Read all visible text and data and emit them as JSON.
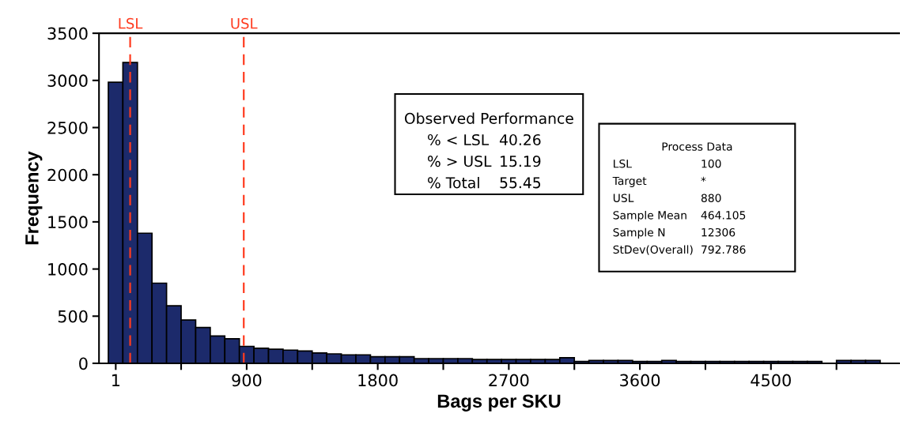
{
  "chart_data": {
    "type": "histogram",
    "xlabel": "Bags per SKU",
    "ylabel": "Frequency",
    "bins": [
      -50,
      50,
      150,
      250,
      350,
      450,
      550,
      650,
      750,
      850,
      950,
      1050,
      1150,
      1250,
      1350,
      1450,
      1550,
      1650,
      1750,
      1850,
      1950,
      2050,
      2150,
      2250,
      2350,
      2450,
      2550,
      2650,
      2750,
      2850,
      2950,
      3050,
      3150,
      3250,
      3350,
      3450,
      3550,
      3650,
      3750,
      3850,
      3950,
      4050,
      4150,
      4250,
      4350,
      4450,
      4550,
      4650,
      4750,
      4850,
      4950,
      5050,
      5150,
      5250
    ],
    "values": [
      2980,
      3190,
      1380,
      850,
      610,
      460,
      380,
      290,
      260,
      180,
      160,
      150,
      140,
      130,
      110,
      100,
      90,
      90,
      70,
      70,
      70,
      50,
      50,
      50,
      50,
      40,
      40,
      40,
      40,
      40,
      40,
      60,
      20,
      30,
      30,
      30,
      20,
      20,
      30,
      20,
      20,
      20,
      20,
      20,
      20,
      20,
      20,
      20,
      20,
      null,
      30,
      30,
      30
    ],
    "color": "#1c2a6b",
    "xlim": [
      -114,
      5380
    ],
    "ylim": [
      0,
      3500
    ],
    "xticks": [
      1,
      {
        "value": 450,
        "label": null
      },
      900,
      {
        "value": 1350,
        "label": null
      },
      1800,
      {
        "value": 2250,
        "label": null
      },
      2700,
      {
        "value": 3150,
        "label": null
      },
      3600,
      {
        "value": 4050,
        "label": null
      },
      4500,
      {
        "value": 4950,
        "label": null
      }
    ],
    "yticks": [
      0,
      500,
      1000,
      1500,
      2000,
      2500,
      3000,
      3500
    ],
    "grid": false,
    "ref_lines": [
      {
        "axis": "x",
        "value": 100,
        "label": "LSL",
        "color": "#ff3b1f",
        "line_style": "dashed"
      },
      {
        "axis": "x",
        "value": 880,
        "label": "USL",
        "color": "#ff3b1f",
        "line_style": "dashed"
      }
    ],
    "annotations": [
      "Observed Performance\n% < LSL\t40.26\n% > USL\t15.19\n% Total\t55.45",
      "Process Data\nLSL\t100\nTarget\t*\nUSL\t880\nSample Mean\t464.105\nSample N\t12306\nStDev(Overall)\t792.786"
    ]
  }
}
